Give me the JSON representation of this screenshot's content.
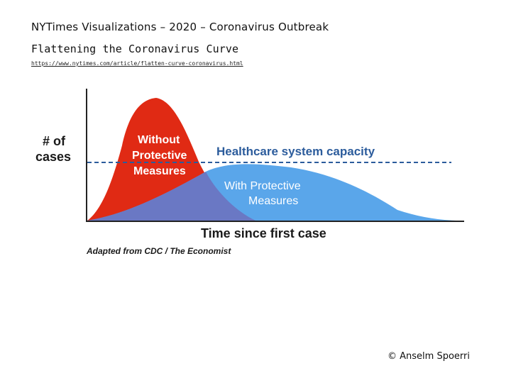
{
  "header": {
    "title": "NYTimes Visualizations – 2020 – Coronavirus Outbreak",
    "subtitle": "Flattening the Coronavirus Curve",
    "url": "https://www.nytimes.com/article/flatten-curve-coronavirus.html"
  },
  "diagram": {
    "y_axis_label_line1": "# of",
    "y_axis_label_line2": "cases",
    "x_axis_label": "Time since first case",
    "capacity_label": "Healthcare system capacity",
    "without_label_line1": "Without",
    "without_label_line2": "Protective",
    "without_label_line3": "Measures",
    "with_label_line1": "With Protective",
    "with_label_line2": "Measures",
    "source": "Adapted from CDC / The Economist",
    "colors": {
      "without": "#e02a14",
      "with": "#5aa6ea",
      "overlap": "#6a78c4",
      "capacity": "#2c5c9c",
      "text_navy": "#1f3e6e"
    }
  },
  "footer": {
    "copyright": "© Anselm Spoerri"
  }
}
